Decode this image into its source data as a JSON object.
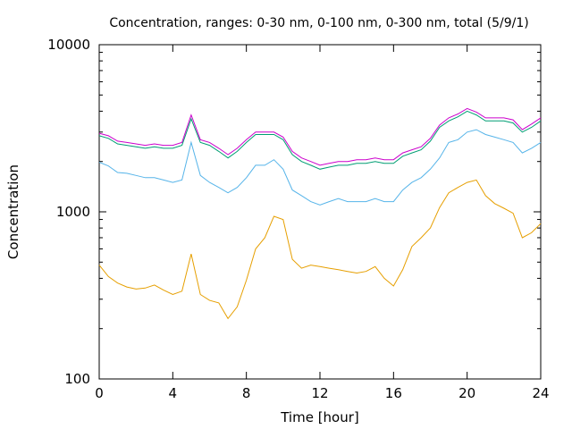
{
  "chart_data": {
    "type": "line",
    "title": "Concentration, ranges: 0-30 nm, 0-100 nm, 0-300 nm, total (5/9/1)",
    "xlabel": "Time [hour]",
    "ylabel": "Concentration",
    "xlim": [
      0,
      24
    ],
    "ylim": [
      100,
      10000
    ],
    "yscale": "log",
    "grid": false,
    "x_ticks": [
      0,
      4,
      8,
      12,
      16,
      20,
      24
    ],
    "x_tick_labels": [
      "0",
      "4",
      "8",
      "12",
      "16",
      "20",
      "24"
    ],
    "y_ticks": [
      100,
      1000,
      10000
    ],
    "y_tick_labels": [
      "100",
      "1000",
      "10000"
    ],
    "x": [
      0.0,
      0.5,
      1.0,
      1.5,
      2.0,
      2.5,
      3.0,
      3.5,
      4.0,
      4.5,
      5.0,
      5.5,
      6.0,
      6.5,
      7.0,
      7.5,
      8.0,
      8.5,
      9.0,
      9.5,
      10.0,
      10.5,
      11.0,
      11.5,
      12.0,
      12.5,
      13.0,
      13.5,
      14.0,
      14.5,
      15.0,
      15.5,
      16.0,
      16.5,
      17.0,
      17.5,
      18.0,
      18.5,
      19.0,
      19.5,
      20.0,
      20.5,
      21.0,
      21.5,
      22.0,
      22.5,
      23.0,
      23.5,
      24.0
    ],
    "series": [
      {
        "color": "#e69f00",
        "values": [
          480,
          410,
          375,
          355,
          345,
          350,
          365,
          340,
          320,
          335,
          560,
          320,
          295,
          285,
          230,
          270,
          390,
          600,
          700,
          940,
          900,
          520,
          460,
          480,
          470,
          460,
          450,
          440,
          430,
          440,
          470,
          400,
          360,
          450,
          620,
          700,
          800,
          1060,
          1300,
          1400,
          1500,
          1550,
          1250,
          1120,
          1050,
          980,
          700,
          750,
          850
        ]
      },
      {
        "color": "#56b4e9",
        "values": [
          1980,
          1880,
          1720,
          1700,
          1650,
          1600,
          1600,
          1550,
          1500,
          1550,
          2600,
          1650,
          1500,
          1400,
          1300,
          1400,
          1600,
          1900,
          1900,
          2050,
          1800,
          1350,
          1250,
          1150,
          1100,
          1150,
          1200,
          1150,
          1150,
          1150,
          1200,
          1150,
          1150,
          1350,
          1500,
          1600,
          1800,
          2100,
          2600,
          2700,
          3000,
          3100,
          2900,
          2800,
          2700,
          2600,
          2250,
          2400,
          2600
        ]
      },
      {
        "color": "#009e73",
        "values": [
          2850,
          2750,
          2550,
          2500,
          2450,
          2400,
          2450,
          2400,
          2400,
          2500,
          3600,
          2600,
          2500,
          2300,
          2100,
          2300,
          2600,
          2900,
          2900,
          2900,
          2700,
          2200,
          2000,
          1900,
          1800,
          1850,
          1900,
          1900,
          1950,
          1950,
          2000,
          1950,
          1950,
          2150,
          2250,
          2350,
          2650,
          3200,
          3500,
          3700,
          4000,
          3800,
          3500,
          3500,
          3500,
          3400,
          3000,
          3200,
          3500
        ]
      },
      {
        "color": "#cc00cc",
        "values": [
          2950,
          2850,
          2650,
          2600,
          2550,
          2500,
          2550,
          2500,
          2500,
          2600,
          3800,
          2700,
          2600,
          2400,
          2200,
          2400,
          2700,
          3000,
          3000,
          3000,
          2800,
          2300,
          2100,
          2000,
          1900,
          1950,
          2000,
          2000,
          2050,
          2050,
          2100,
          2050,
          2050,
          2250,
          2350,
          2450,
          2750,
          3300,
          3650,
          3850,
          4150,
          3950,
          3650,
          3650,
          3650,
          3550,
          3100,
          3350,
          3650
        ]
      }
    ]
  }
}
